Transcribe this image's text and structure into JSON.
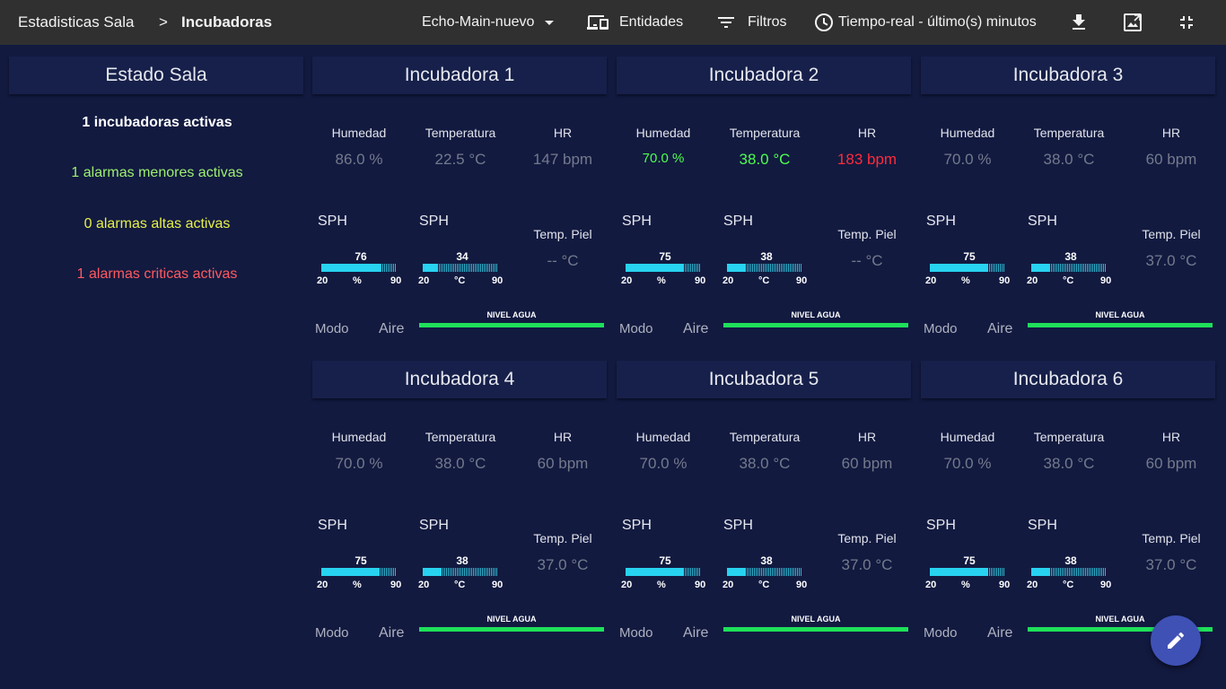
{
  "header": {
    "breadcrumb_root": "Estadisticas Sala",
    "breadcrumb_sep": ">",
    "breadcrumb_current": "Incubadoras",
    "dashboard_selector": "Echo-Main-nuevo",
    "entities_label": "Entidades",
    "filters_label": "Filtros",
    "timewindow_label": "Tiempo-real - último(s) minutos"
  },
  "estado_sala": {
    "title": "Estado Sala",
    "lines": [
      {
        "text": "1 incubadoras activas",
        "color": "#ffffff"
      },
      {
        "text": "1 alarmas menores activas",
        "color": "#9ef06f"
      },
      {
        "text": "0 alarmas altas activas",
        "color": "#e6f046"
      },
      {
        "text": "1 alarmas criticas activas",
        "color": "#ff5a5f"
      }
    ]
  },
  "labels": {
    "humedad": "Humedad",
    "temperatura": "Temperatura",
    "hr": "HR",
    "sph": "SPH",
    "temp_piel": "Temp. Piel",
    "modo": "Modo",
    "nivel_agua": "NIVEL AGUA",
    "gauge_min": "20",
    "gauge_max": "90",
    "unit_percent": "%",
    "unit_celsius": "°C"
  },
  "incubators": [
    {
      "title": "Incubadora 1",
      "humedad": "86.0 %",
      "temperatura": "22.5 °C",
      "hr": "147 bpm",
      "sph_hum": 76,
      "sph_temp": 34,
      "temp_piel": "-- °C",
      "modo": "Aire",
      "active": false
    },
    {
      "title": "Incubadora 2",
      "humedad": "70.0 %",
      "temperatura": "38.0 °C",
      "hr": "183 bpm",
      "sph_hum": 75,
      "sph_temp": 38,
      "temp_piel": "-- °C",
      "modo": "Aire",
      "active": true
    },
    {
      "title": "Incubadora 3",
      "humedad": "70.0 %",
      "temperatura": "38.0 °C",
      "hr": "60 bpm",
      "sph_hum": 75,
      "sph_temp": 38,
      "temp_piel": "37.0 °C",
      "modo": "Aire",
      "active": false
    },
    {
      "title": "Incubadora 4",
      "humedad": "70.0 %",
      "temperatura": "38.0 °C",
      "hr": "60 bpm",
      "sph_hum": 75,
      "sph_temp": 38,
      "temp_piel": "37.0 °C",
      "modo": "Aire",
      "active": false
    },
    {
      "title": "Incubadora 5",
      "humedad": "70.0 %",
      "temperatura": "38.0 °C",
      "hr": "60 bpm",
      "sph_hum": 75,
      "sph_temp": 38,
      "temp_piel": "37.0 °C",
      "modo": "Aire",
      "active": false
    },
    {
      "title": "Incubadora 6",
      "humedad": "70.0 %",
      "temperatura": "38.0 °C",
      "hr": "60 bpm",
      "sph_hum": 75,
      "sph_temp": 38,
      "temp_piel": "37.0 °C",
      "modo": "Aire",
      "active": false
    }
  ],
  "colors": {
    "ok": "#4dff4d",
    "critical": "#ff2b3a",
    "inactive": "#747a8c",
    "water": "#1fe05a",
    "accent": "#3f51b5"
  },
  "icons": {
    "dropdown": "chevron-down-icon",
    "entities": "devices-icon",
    "filters": "filter-list-icon",
    "timewindow": "clock-icon",
    "download": "download-icon",
    "export": "image-export-icon",
    "exit_fullscreen": "fullscreen-exit-icon",
    "edit": "pencil-icon"
  }
}
